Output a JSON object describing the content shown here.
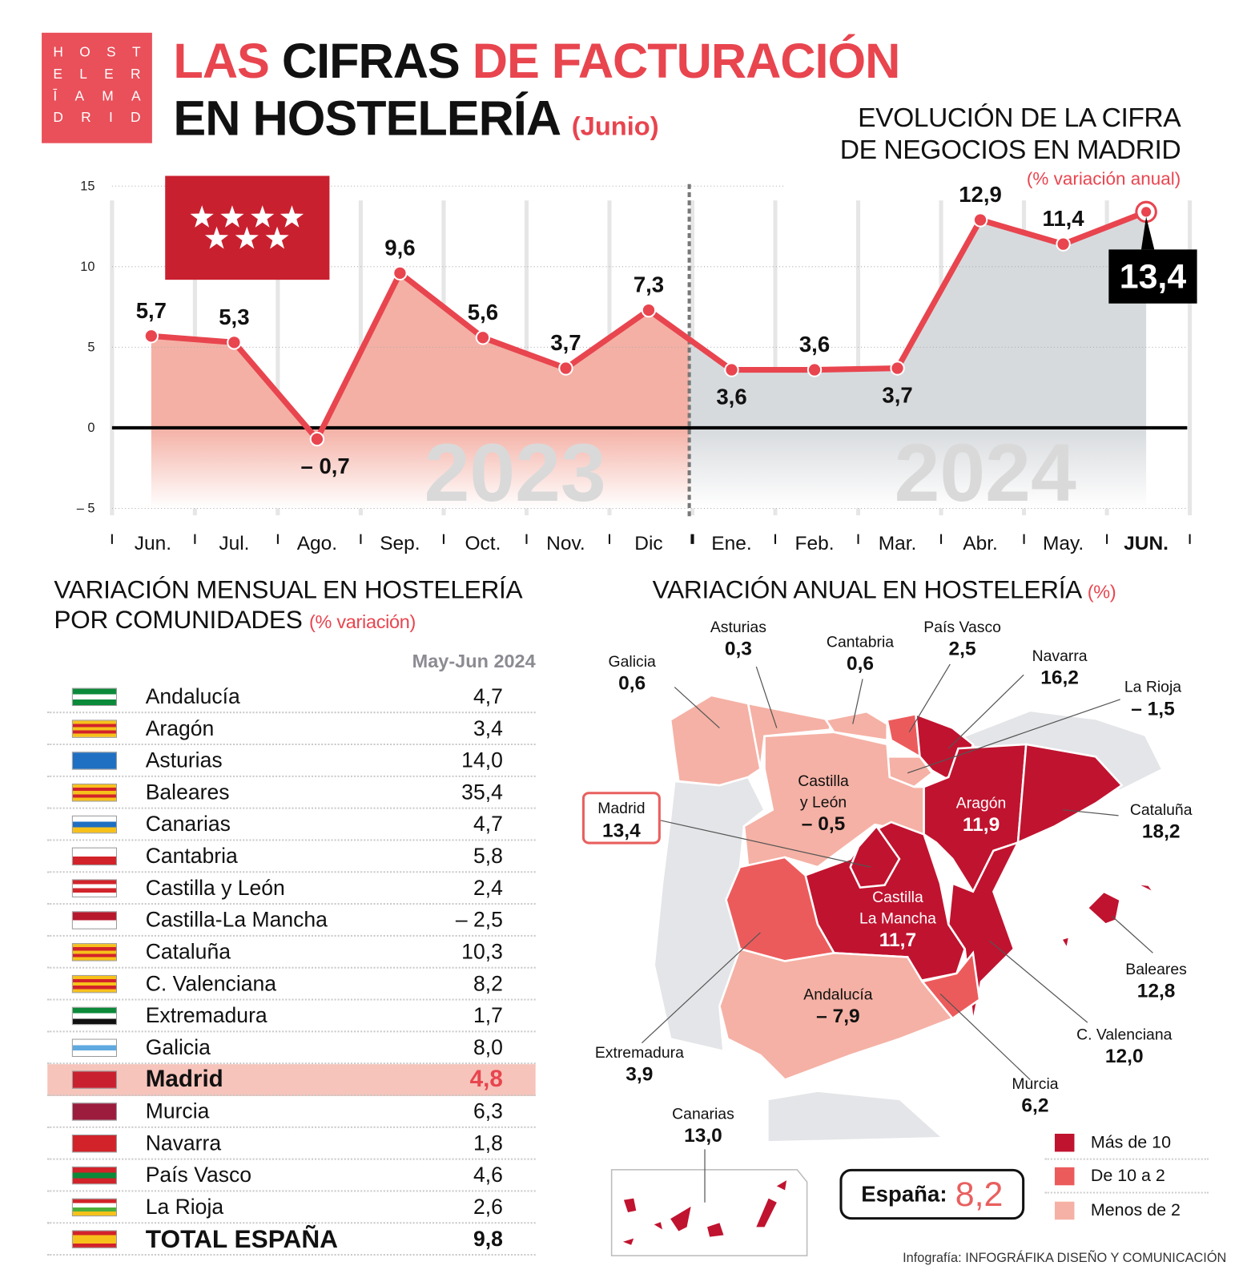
{
  "logo": {
    "rows": [
      [
        "H",
        "O",
        "S",
        "T"
      ],
      [
        "E",
        "L",
        "E",
        "R"
      ],
      [
        "Ī",
        "A",
        "M",
        "A"
      ],
      [
        "D",
        "R",
        "I",
        "D"
      ]
    ]
  },
  "title": {
    "line1_a": "LAS",
    "line1_b": "CIFRAS",
    "line1_c": "DE FACTURACIÓN",
    "line2": "EN HOSTELERÍA",
    "line2_note": "(Junio)"
  },
  "chart_data": {
    "type": "line",
    "title": "EVOLUCIÓN DE LA CIFRA DE NEGOCIOS EN MADRID",
    "title_line1": "EVOLUCIÓN DE LA CIFRA",
    "title_line2": "DE NEGOCIOS EN MADRID",
    "subtitle": "(% variación anual)",
    "categories": [
      "Jun.",
      "Jul.",
      "Ago.",
      "Sep.",
      "Oct.",
      "Nov.",
      "Dic",
      "Ene.",
      "Feb.",
      "Mar.",
      "Abr.",
      "May.",
      "JUN."
    ],
    "values": [
      5.7,
      5.3,
      -0.7,
      9.6,
      5.6,
      3.7,
      7.3,
      3.6,
      3.6,
      3.7,
      12.9,
      11.4,
      13.4
    ],
    "value_labels": [
      "5,7",
      "5,3",
      "– 0,7",
      "9,6",
      "5,6",
      "3,7",
      "7,3",
      "3,6",
      "3,6",
      "3,7",
      "12,9",
      "11,4",
      "13,4"
    ],
    "year_labels": [
      "2023",
      "2024"
    ],
    "yticks": [
      "15",
      "10",
      "5",
      "0",
      "– 5"
    ],
    "ylim": [
      -5,
      15
    ],
    "grid": true,
    "colors": {
      "line": "#e8454f",
      "fill_2023": "#f4b0a5",
      "fill_2024": "#d7dadd",
      "highlight_box": "#000000"
    }
  },
  "monthly": {
    "title_line1": "VARIACIÓN MENSUAL EN HOSTELERÍA",
    "title_line2": "POR COMUNIDADES",
    "title_note": "(% variación)",
    "column_header": "May-Jun 2024",
    "rows": [
      {
        "name": "Andalucía",
        "value": "4,7",
        "flag": [
          "#0b8a3a",
          "#ffffff",
          "#0b8a3a"
        ]
      },
      {
        "name": "Aragón",
        "value": "3,4",
        "flag": [
          "#f7c11b",
          "#d2232a",
          "#f7c11b",
          "#d2232a",
          "#f7c11b"
        ]
      },
      {
        "name": "Asturias",
        "value": "14,0",
        "flag": [
          "#1f6fc2",
          "#1f6fc2"
        ]
      },
      {
        "name": "Baleares",
        "value": "35,4",
        "flag": [
          "#f7c11b",
          "#d2232a",
          "#f7c11b",
          "#d2232a",
          "#f7c11b"
        ]
      },
      {
        "name": "Canarias",
        "value": "4,7",
        "flag": [
          "#ffffff",
          "#1f6fc2",
          "#f7c11b"
        ]
      },
      {
        "name": "Cantabria",
        "value": "5,8",
        "flag": [
          "#ffffff",
          "#d2232a"
        ]
      },
      {
        "name": "Castilla y León",
        "value": "2,4",
        "flag": [
          "#d2232a",
          "#ffffff",
          "#d2232a",
          "#ffffff"
        ]
      },
      {
        "name": "Castilla-La Mancha",
        "value": "– 2,5",
        "flag": [
          "#b7182c",
          "#ffffff"
        ]
      },
      {
        "name": "Cataluña",
        "value": "10,3",
        "flag": [
          "#f7c11b",
          "#d2232a",
          "#f7c11b",
          "#d2232a",
          "#f7c11b"
        ]
      },
      {
        "name": "C. Valenciana",
        "value": "8,2",
        "flag": [
          "#f7c11b",
          "#d2232a",
          "#f7c11b",
          "#d2232a",
          "#f7c11b"
        ]
      },
      {
        "name": "Extremadura",
        "value": "1,7",
        "flag": [
          "#0b8a3a",
          "#ffffff",
          "#111111"
        ]
      },
      {
        "name": "Galicia",
        "value": "8,0",
        "flag": [
          "#ffffff",
          "#5fa9e0",
          "#ffffff"
        ]
      },
      {
        "name": "Madrid",
        "value": "4,8",
        "flag": [
          "#c9202f",
          "#c9202f"
        ]
      },
      {
        "name": "Murcia",
        "value": "6,3",
        "flag": [
          "#9b1c3d",
          "#9b1c3d"
        ]
      },
      {
        "name": "Navarra",
        "value": "1,8",
        "flag": [
          "#d2232a",
          "#d2232a"
        ]
      },
      {
        "name": "País Vasco",
        "value": "4,6",
        "flag": [
          "#d2232a",
          "#0b8a3a",
          "#d2232a"
        ]
      },
      {
        "name": "La Rioja",
        "value": "2,6",
        "flag": [
          "#d2232a",
          "#ffffff",
          "#4caf3a",
          "#f7c11b"
        ]
      },
      {
        "name": "TOTAL ESPAÑA",
        "value": "9,8",
        "flag": [
          "#d2232a",
          "#f7c11b",
          "#f7c11b",
          "#d2232a"
        ]
      }
    ]
  },
  "annual": {
    "title": "VARIACIÓN ANUAL EN HOSTELERÍA",
    "title_note": "(%)",
    "regions": [
      {
        "name": "Galicia",
        "value": "0,6"
      },
      {
        "name": "Asturias",
        "value": "0,3"
      },
      {
        "name": "Cantabria",
        "value": "0,6"
      },
      {
        "name": "País Vasco",
        "value": "2,5"
      },
      {
        "name": "Navarra",
        "value": "16,2"
      },
      {
        "name": "La Rioja",
        "value": "– 1,5"
      },
      {
        "name": "Cataluña",
        "value": "18,2"
      },
      {
        "name": "Baleares",
        "value": "12,8"
      },
      {
        "name": "C. Valenciana",
        "value": "12,0"
      },
      {
        "name": "Murcia",
        "value": "6,2"
      },
      {
        "name": "Extremadura",
        "value": "3,9"
      },
      {
        "name": "Canarias",
        "value": "13,0"
      },
      {
        "name": "Castilla",
        "name2": "y León",
        "value": "– 0,5"
      },
      {
        "name": "Aragón",
        "value": "11,9"
      },
      {
        "name": "Castilla",
        "name2": "La Mancha",
        "value": "11,7"
      },
      {
        "name": "Andalucía",
        "value": "– 7,9"
      },
      {
        "name": "Madrid",
        "value": "13,4"
      }
    ],
    "spain_label": "España:",
    "spain_value": "8,2",
    "legend": [
      {
        "label": "Más de 10",
        "color": "#c0132f"
      },
      {
        "label": "De 10 a 2",
        "color": "#ec5b5c"
      },
      {
        "label": "Menos de 2",
        "color": "#f5b1a5"
      }
    ]
  },
  "credit": {
    "prefix": "Infografía:",
    "author": "INFOGRÁFIKA DISEÑO Y COMUNICACIÓN"
  }
}
